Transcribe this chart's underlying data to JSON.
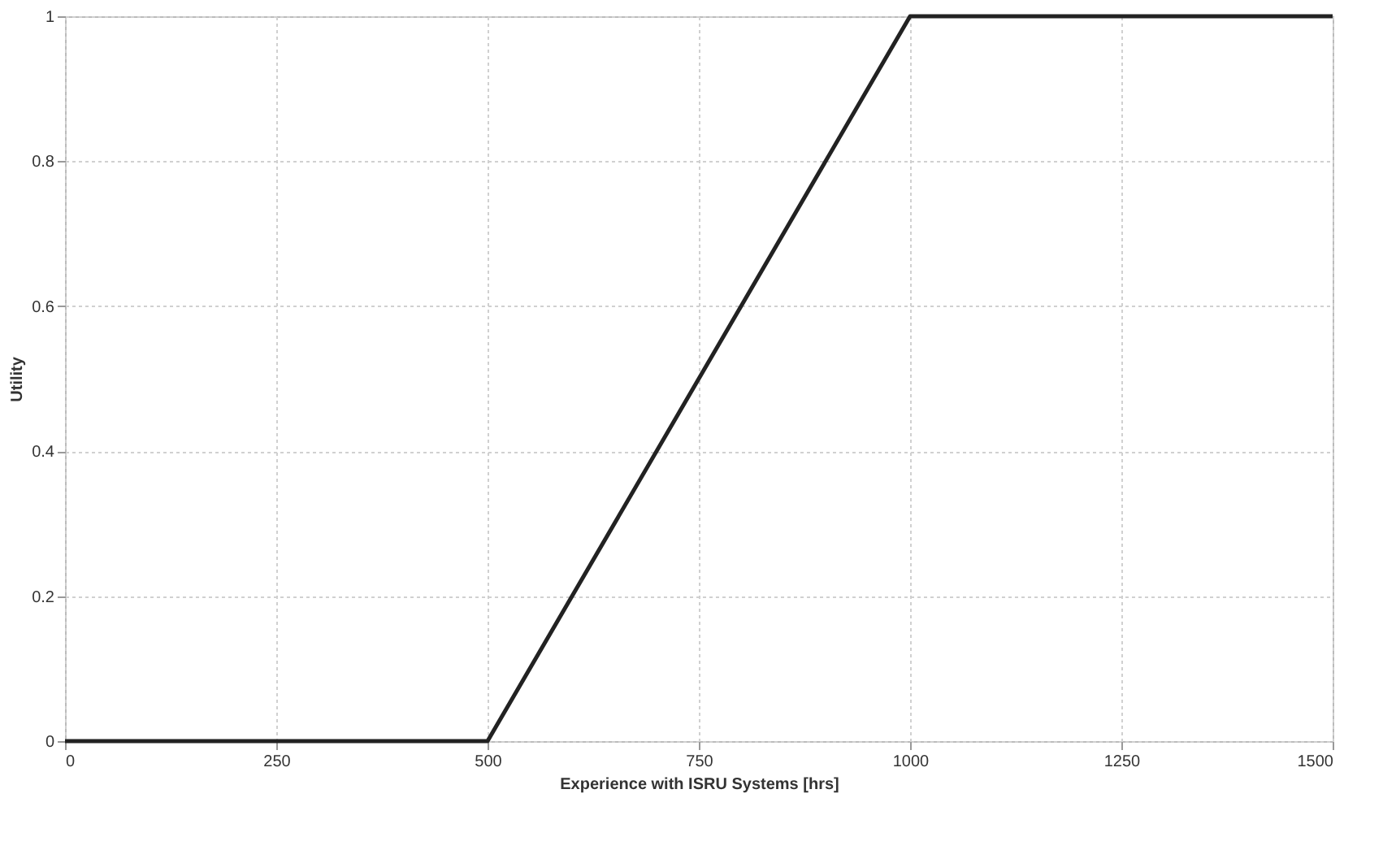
{
  "chart_data": {
    "type": "line",
    "xlabel": "Experience with ISRU Systems [hrs]",
    "ylabel": "Utility",
    "x": [
      0,
      500,
      1000,
      1500
    ],
    "series": [
      {
        "color": "#222222",
        "values": [
          0,
          0,
          1,
          1
        ]
      }
    ],
    "xlim": [
      0,
      1500
    ],
    "xticks": [
      0,
      250,
      500,
      750,
      1000,
      1250,
      1500
    ],
    "ylim": [
      0,
      1
    ],
    "yticks": [
      0,
      0.2,
      0.4,
      0.6,
      0.8,
      1
    ],
    "grid": true,
    "marker": "none",
    "line_style": "solid"
  }
}
